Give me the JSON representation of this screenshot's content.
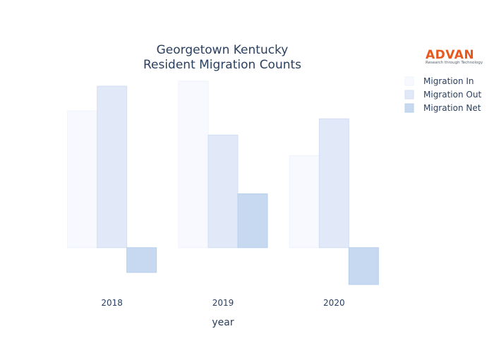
{
  "chart_data": {
    "type": "bar",
    "title_lines": [
      "Georgetown Kentucky",
      "Resident Migration Counts"
    ],
    "xlabel": "year",
    "ylabel": "",
    "categories": [
      "2018",
      "2019",
      "2020"
    ],
    "series": [
      {
        "name": "Migration In",
        "values": [
          193,
          235,
          130
        ],
        "color": "#f7f9ff",
        "stroke": "#eef2fb"
      },
      {
        "name": "Migration Out",
        "values": [
          228,
          159,
          182
        ],
        "color": "#e1e9f8",
        "stroke": "#d3def3"
      },
      {
        "name": "Migration Net",
        "values": [
          -35,
          76,
          -52
        ],
        "color": "#c6d9f1",
        "stroke": "#b9cfec"
      }
    ],
    "ylim": [
      -62,
      245
    ],
    "grid": false,
    "legend_position": "top-right"
  },
  "logo": {
    "name": "ADVAN",
    "tagline": "Research through Technology"
  }
}
